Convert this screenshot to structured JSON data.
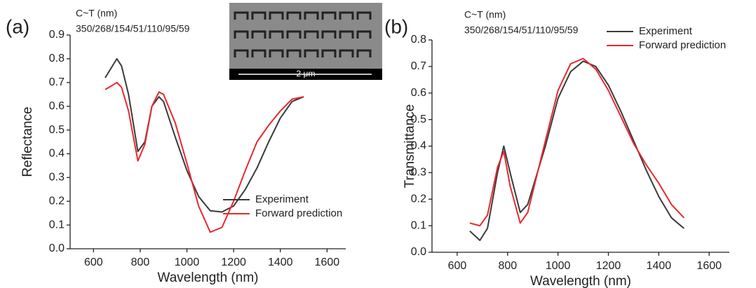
{
  "chart_data": [
    {
      "type": "line",
      "label": "(a)",
      "annotations": [
        "C~T (nm)",
        "350/268/154/51/110/95/59"
      ],
      "inset_label": "2 μm",
      "x_label": "Wavelength (nm)",
      "y_label": "Reflectance",
      "x": [
        650,
        700,
        720,
        750,
        790,
        820,
        850,
        880,
        900,
        950,
        1000,
        1050,
        1100,
        1150,
        1200,
        1250,
        1300,
        1350,
        1400,
        1450,
        1500
      ],
      "series": [
        {
          "name": "Experiment",
          "color": "#3a3a3a",
          "values": [
            0.72,
            0.8,
            0.77,
            0.65,
            0.41,
            0.45,
            0.6,
            0.64,
            0.62,
            0.47,
            0.33,
            0.22,
            0.16,
            0.155,
            0.18,
            0.25,
            0.34,
            0.45,
            0.55,
            0.62,
            0.64
          ]
        },
        {
          "name": "Forward prediction",
          "color": "#e8282d",
          "values": [
            0.67,
            0.7,
            0.68,
            0.58,
            0.37,
            0.44,
            0.6,
            0.66,
            0.65,
            0.53,
            0.36,
            0.18,
            0.07,
            0.09,
            0.2,
            0.33,
            0.45,
            0.52,
            0.58,
            0.63,
            0.64
          ]
        }
      ],
      "xlim": [
        500,
        1680
      ],
      "xticks": [
        600,
        800,
        1000,
        1200,
        1400,
        1600
      ],
      "ylim": [
        0,
        0.9
      ],
      "yticks": [
        {
          "value": 0,
          "label": "0.0"
        },
        0.1,
        0.2,
        0.3,
        0.4,
        0.5,
        0.6,
        0.7,
        0.8,
        0.9
      ],
      "legend": "lower right",
      "grid": false
    },
    {
      "type": "line",
      "label": "(b)",
      "annotations": [
        "C~T (nm)",
        "350/268/154/51/110/95/59"
      ],
      "x_label": "Wavelength (nm)",
      "y_label": "Transmittance",
      "x": [
        650,
        690,
        720,
        760,
        785,
        810,
        850,
        880,
        950,
        1000,
        1050,
        1100,
        1150,
        1200,
        1250,
        1300,
        1350,
        1400,
        1450,
        1500
      ],
      "series": [
        {
          "name": "Experiment",
          "color": "#3a3a3a",
          "values": [
            0.08,
            0.045,
            0.09,
            0.3,
            0.4,
            0.3,
            0.15,
            0.18,
            0.4,
            0.58,
            0.68,
            0.72,
            0.7,
            0.63,
            0.53,
            0.42,
            0.31,
            0.21,
            0.13,
            0.09
          ]
        },
        {
          "name": "Forward prediction",
          "color": "#e8282d",
          "values": [
            0.11,
            0.1,
            0.14,
            0.32,
            0.38,
            0.25,
            0.11,
            0.15,
            0.42,
            0.61,
            0.71,
            0.73,
            0.69,
            0.61,
            0.51,
            0.41,
            0.33,
            0.26,
            0.18,
            0.13
          ]
        }
      ],
      "xlim": [
        500,
        1680
      ],
      "xticks": [
        600,
        800,
        1000,
        1200,
        1400,
        1600
      ],
      "ylim": [
        0,
        0.8
      ],
      "yticks": [
        {
          "value": 0,
          "label": "0.0"
        },
        0.1,
        0.2,
        0.3,
        0.4,
        0.5,
        0.6,
        0.7,
        0.8
      ],
      "legend": "upper right",
      "grid": false
    }
  ]
}
